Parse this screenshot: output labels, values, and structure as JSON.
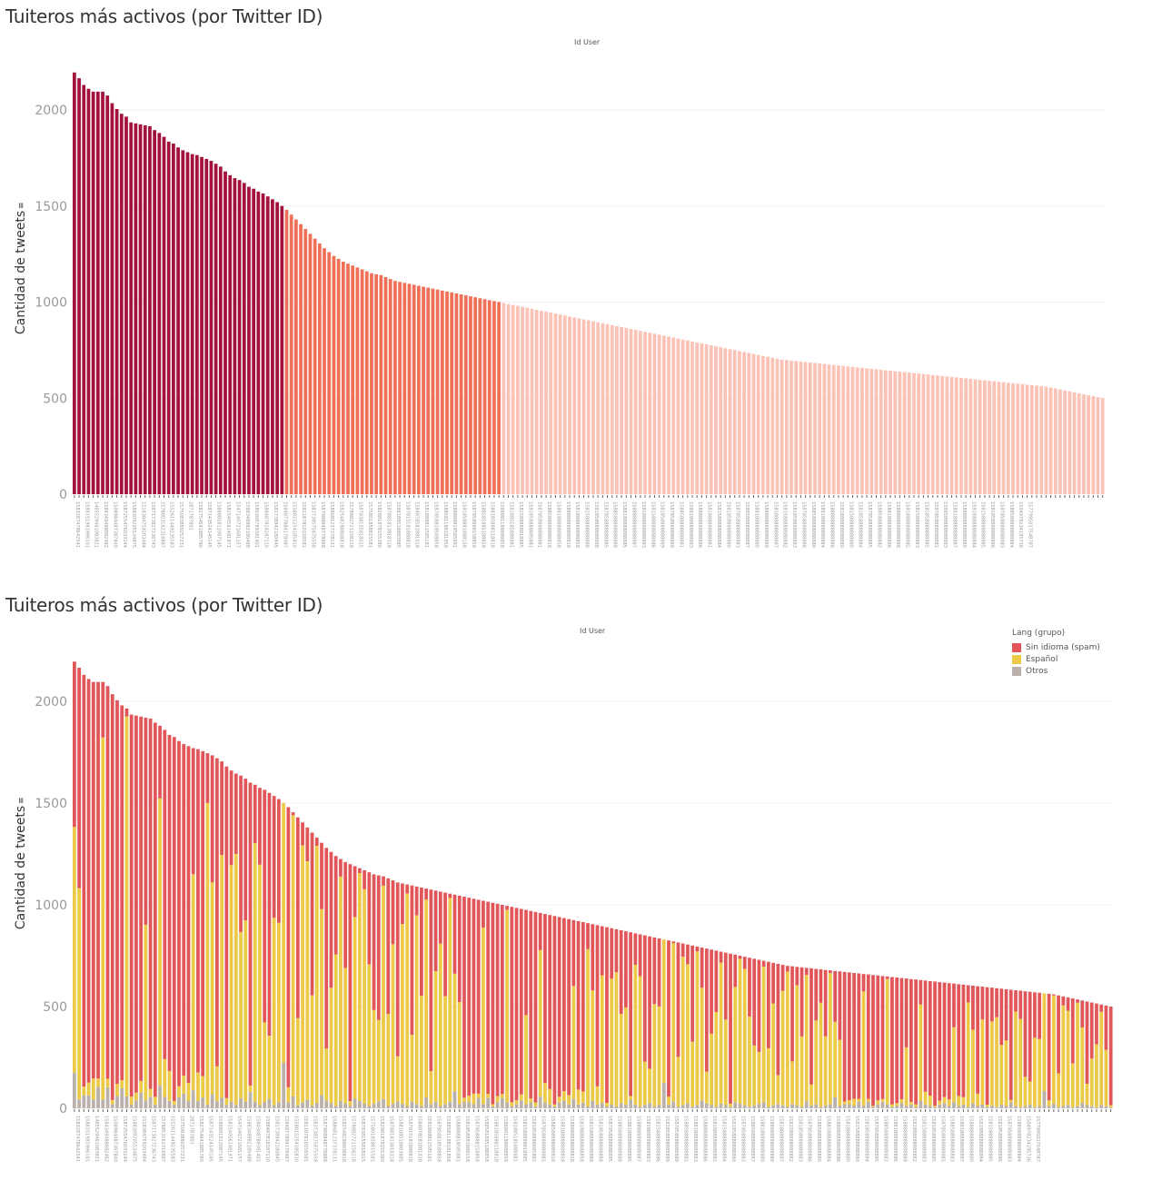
{
  "chart_data": [
    {
      "type": "bar",
      "title": "Tuiteros más activos (por Twitter ID)",
      "column_header": "Id User",
      "xlabel": "Id User",
      "ylabel": "Cantidad de tweets",
      "ylabel_icon": "sort-icon",
      "ylim": [
        0,
        2200
      ],
      "yticks": [
        0,
        500,
        1000,
        1500,
        2000
      ],
      "grid": true,
      "color_groups": [
        {
          "name": "high",
          "color": "#a3123b",
          "min": 1500
        },
        {
          "name": "mid",
          "color": "#f07057",
          "min": 1000
        },
        {
          "name": "low",
          "color": "#fcc2b6",
          "min": 0
        }
      ],
      "values": [
        2195,
        2165,
        2130,
        2110,
        2095,
        2095,
        2095,
        2075,
        2035,
        2005,
        1980,
        1965,
        1935,
        1930,
        1925,
        1920,
        1915,
        1895,
        1880,
        1860,
        1835,
        1825,
        1805,
        1790,
        1780,
        1770,
        1765,
        1755,
        1745,
        1735,
        1720,
        1705,
        1680,
        1660,
        1645,
        1635,
        1620,
        1600,
        1590,
        1575,
        1565,
        1550,
        1535,
        1520,
        1500,
        1480,
        1455,
        1430,
        1405,
        1380,
        1355,
        1330,
        1305,
        1280,
        1260,
        1240,
        1225,
        1210,
        1200,
        1190,
        1180,
        1170,
        1160,
        1150,
        1145,
        1140,
        1130,
        1120,
        1110,
        1105,
        1100,
        1095,
        1090,
        1085,
        1080,
        1075,
        1070,
        1065,
        1060,
        1055,
        1050,
        1045,
        1040,
        1035,
        1030,
        1025,
        1020,
        1015,
        1010,
        1005,
        1000,
        995,
        990,
        985,
        980,
        975,
        970,
        965,
        960,
        955,
        950,
        945,
        940,
        935,
        930,
        925,
        920,
        915,
        910,
        905,
        900,
        895,
        890,
        885,
        880,
        875,
        870,
        865,
        860,
        855,
        850,
        845,
        840,
        835,
        830,
        825,
        820,
        815,
        810,
        805,
        800,
        795,
        790,
        785,
        780,
        775,
        770,
        765,
        760,
        755,
        750,
        745,
        740,
        735,
        730,
        725,
        720,
        715,
        710,
        705,
        700,
        698,
        695,
        693,
        690,
        688,
        685,
        683,
        680,
        678,
        675,
        673,
        670,
        668,
        665,
        663,
        660,
        658,
        655,
        653,
        650,
        648,
        645,
        643,
        640,
        638,
        635,
        633,
        630,
        628,
        625,
        623,
        620,
        618,
        615,
        613,
        610,
        608,
        605,
        603,
        600,
        598,
        595,
        593,
        590,
        588,
        585,
        583,
        580,
        578,
        575,
        573,
        570,
        568,
        565,
        563,
        560,
        555,
        550,
        545,
        540,
        535,
        530,
        525,
        520,
        515,
        510,
        505,
        500
      ],
      "categories": [
        "1583287478642541",
        "1389398942868183",
        "1588151981996101",
        "1571984811150451",
        "1485529461083821",
        "1351181742845793",
        "1584349488882482",
        "2827417518",
        "1508984487387840",
        "1518421718413611",
        "1587255476033144",
        "1588491889717747",
        "1588309205534875",
        "1351211091691581",
        "1518384759203484",
        "1547251231810214",
        "1587173827236743",
        "1587233885129742",
        "1578853162316887",
        "1552438854543870",
        "1552611449235583",
        "1574522845185840",
        "1575083880257231",
        "1581140125465151",
        "2871787801",
        "1587413736058480",
        "1582754641885780",
        "1574544728515480",
        "1587143524145145",
        "1575225681295230",
        "1588881812087145",
        "1578559877283804",
        "1581540561481971",
        "1574418281281818",
        "1547140721681157",
        "1581540451651115",
        "1588348982180488",
        "1578478412585845",
        "1580308789381401",
        "1586481798938831",
        "1588487818187110",
        "1582784283467578",
        "1581738942180845",
        "1579486188247588",
        "1584877884178487",
        "1587784817548781",
        "1558815254185810",
        "1568887887518457",
        "1581187810158581",
        "1586815854181018",
        "1583738575875558",
        "1587888121887411",
        "1587988848778888",
        "1584787847828130",
        "1588681237378131",
        "1587488248518813",
        "1582548288808818",
        "1581384418880818",
        "1578882721158218",
        "1588585188108101",
        "1587838155818015",
        "1581151848817831",
        "1575801858815581",
        "1578184818501858",
        "1582881878155380",
        "1580818381878518",
        "1587881813818318",
        "1588881838881881",
        "1588188518883885",
        "1581858858108818",
        "1587815181888818",
        "1588181188588815",
        "1584878581881018",
        "1588158118181181",
        "1581888811585181",
        "1588188188881818",
        "1587858818588858",
        "1581581188855188",
        "1588581188181858",
        "1585881888818158",
        "1588888818585881",
        "1588188858818818",
        "1581858881888158",
        "1588181188588518",
        "1587858888158858",
        "1581888158881181",
        "1588581885188858",
        "1584888818885881",
        "1588185888118818",
        "1581888888158185",
        "1588881188888858",
        "1587858858881881",
        "1581885185888881",
        "1588888518858818",
        "1581588888818885",
        "1588185888888118",
        "1581858888885881",
        "1588888858818888",
        "1587858888888881",
        "1581888888885858",
        "1588588888888818",
        "1584888888885888",
        "1588188888888858",
        "1581888888888881",
        "1588888888888818",
        "1587858888888888",
        "1581888888888858",
        "1588888888888885",
        "1581588888888888",
        "1588188888888888",
        "1581858888888888",
        "1588888888888881",
        "1587858888888885",
        "1581888888888888",
        "1588588888888888",
        "1584888888888888",
        "1588188888888885",
        "1581888888888882",
        "1588888888888887",
        "1587858888888882",
        "1581888888888883",
        "1588888888888884",
        "1581588888888886",
        "1588188888888887",
        "1581858888888889",
        "1588888888888880",
        "1587858888888889",
        "1581888888888880",
        "1588588888888881",
        "1584888888888882",
        "1588188888888883",
        "1581888888888884",
        "1588888888888886",
        "1587858888888880",
        "1581888888888881",
        "1588888888888883",
        "1581588888888884",
        "1588188888888886",
        "1581858888888880",
        "1588888888888882",
        "1587858888888883",
        "1581888888888885",
        "1588588888888887",
        "1584888888888889",
        "1588188888888880",
        "1581888888888886",
        "1588888888888889",
        "1587858888888884",
        "1581888888888887",
        "1588888888888880",
        "1581588888888882",
        "1588188888888881",
        "1581858888888883",
        "1588888888888885",
        "1587858888888886",
        "1581888888888889",
        "1588588888888880",
        "1584888888888883",
        "1588188888888884",
        "1581888888888885",
        "1588888888888886",
        "1587858888888887",
        "1581888888888880",
        "1588888888888881",
        "1581588888888880",
        "1588188888888882",
        "1581858888888884",
        "1588888888888883",
        "1587858888888885",
        "1581888888888886",
        "1588588888888882",
        "1584888888888884",
        "1588188888888886",
        "1581888888888887",
        "1588888888888888",
        "1587858888888880",
        "1581888888888882",
        "1588888888888885",
        "1581588888888883",
        "1588188888888889",
        "1581858888888885",
        "1588888888888887",
        "1587858888888881",
        "1581888888888883",
        "1588588888888883",
        "1584888888888885",
        "1588188888888887",
        "1581888888888888",
        "1588888888888880",
        "1587858888888882",
        "1581888888888884",
        "1588888888888886",
        "1581588888888885",
        "1588188888888880",
        "1581858888888886",
        "1588888888888889",
        "1587858888888883",
        "1581888888888885",
        "1588588888888884",
        "384486280",
        "1504978234195736",
        "1598481871118835",
        "1577995017548787",
        "1508808181815873"
      ]
    },
    {
      "type": "bar",
      "stacked": true,
      "title": "Tuiteros más activos (por Twitter ID)",
      "column_header": "Id User",
      "xlabel": "Id User",
      "ylabel": "Cantidad de tweets",
      "ylabel_icon": "sort-icon",
      "ylim": [
        0,
        2200
      ],
      "yticks": [
        0,
        500,
        1000,
        1500,
        2000
      ],
      "grid": true,
      "legend": {
        "title": "Lang (grupo)",
        "placement": "top-right",
        "items": [
          {
            "name": "Sin idioma (spam)",
            "color": "#e15759"
          },
          {
            "name": "Español",
            "color": "#edc948"
          },
          {
            "name": "Otros",
            "color": "#bab0ac"
          }
        ]
      },
      "categories_ref": "same as first chart",
      "otros_share": [
        0.08,
        0.02,
        0.03,
        0.03,
        0.02,
        0.05,
        0.02,
        0.05,
        0.01,
        0.03,
        0.05,
        0.03,
        0.01,
        0.02,
        0.04,
        0.02,
        0.03,
        0.01,
        0.06,
        0.03,
        0.02,
        0.01,
        0.03,
        0.04,
        0.02,
        0.05,
        0.02,
        0.03,
        0.01,
        0.04,
        0.02,
        0.03,
        0.01,
        0.02,
        0.01,
        0.03,
        0.02,
        0.05,
        0.02,
        0.01,
        0.02,
        0.03,
        0.01,
        0.02,
        0.15,
        0.02,
        0.04,
        0.01,
        0.02,
        0.03,
        0.01,
        0.02,
        0.05,
        0.03,
        0.02,
        0.01,
        0.03,
        0.02,
        0.01,
        0.04,
        0.03,
        0.02,
        0.01,
        0.02,
        0.03,
        0.04,
        0.01,
        0.02,
        0.03,
        0.02,
        0.01,
        0.03,
        0.02,
        0.01,
        0.05,
        0.02,
        0.03,
        0.01,
        0.02,
        0.03
      ],
      "espanol_share": [
        0.55,
        0.48,
        0.02,
        0.03,
        0.05,
        0.02,
        0.85,
        0.02,
        0.01,
        0.03,
        0.02,
        0.95,
        0.02,
        0.02,
        0.03,
        0.45,
        0.02,
        0.02,
        0.75,
        0.1,
        0.08,
        0.01,
        0.03,
        0.05,
        0.05,
        0.6,
        0.08,
        0.06,
        0.85,
        0.6,
        0.1,
        0.7,
        0.02,
        0.7,
        0.75,
        0.5,
        0.55,
        0.02,
        0.8,
        0.75,
        0.25,
        0.2,
        0.6,
        0.58,
        0.95,
        0.05,
        0.95,
        0.3,
        0.9,
        0.85,
        0.4,
        0.95,
        0.7,
        0.2,
        0.45,
        0.6,
        0.9,
        0.55,
        0.02,
        0.75,
        0.95,
        0.9,
        0.6,
        0.4,
        0.35,
        0.92,
        0.4,
        0.7,
        0.2,
        0.8,
        0.95,
        0.3,
        0.85,
        0.5,
        0.9,
        0.15,
        0.6,
        0.75,
        0.5,
        0.95
      ]
    }
  ]
}
